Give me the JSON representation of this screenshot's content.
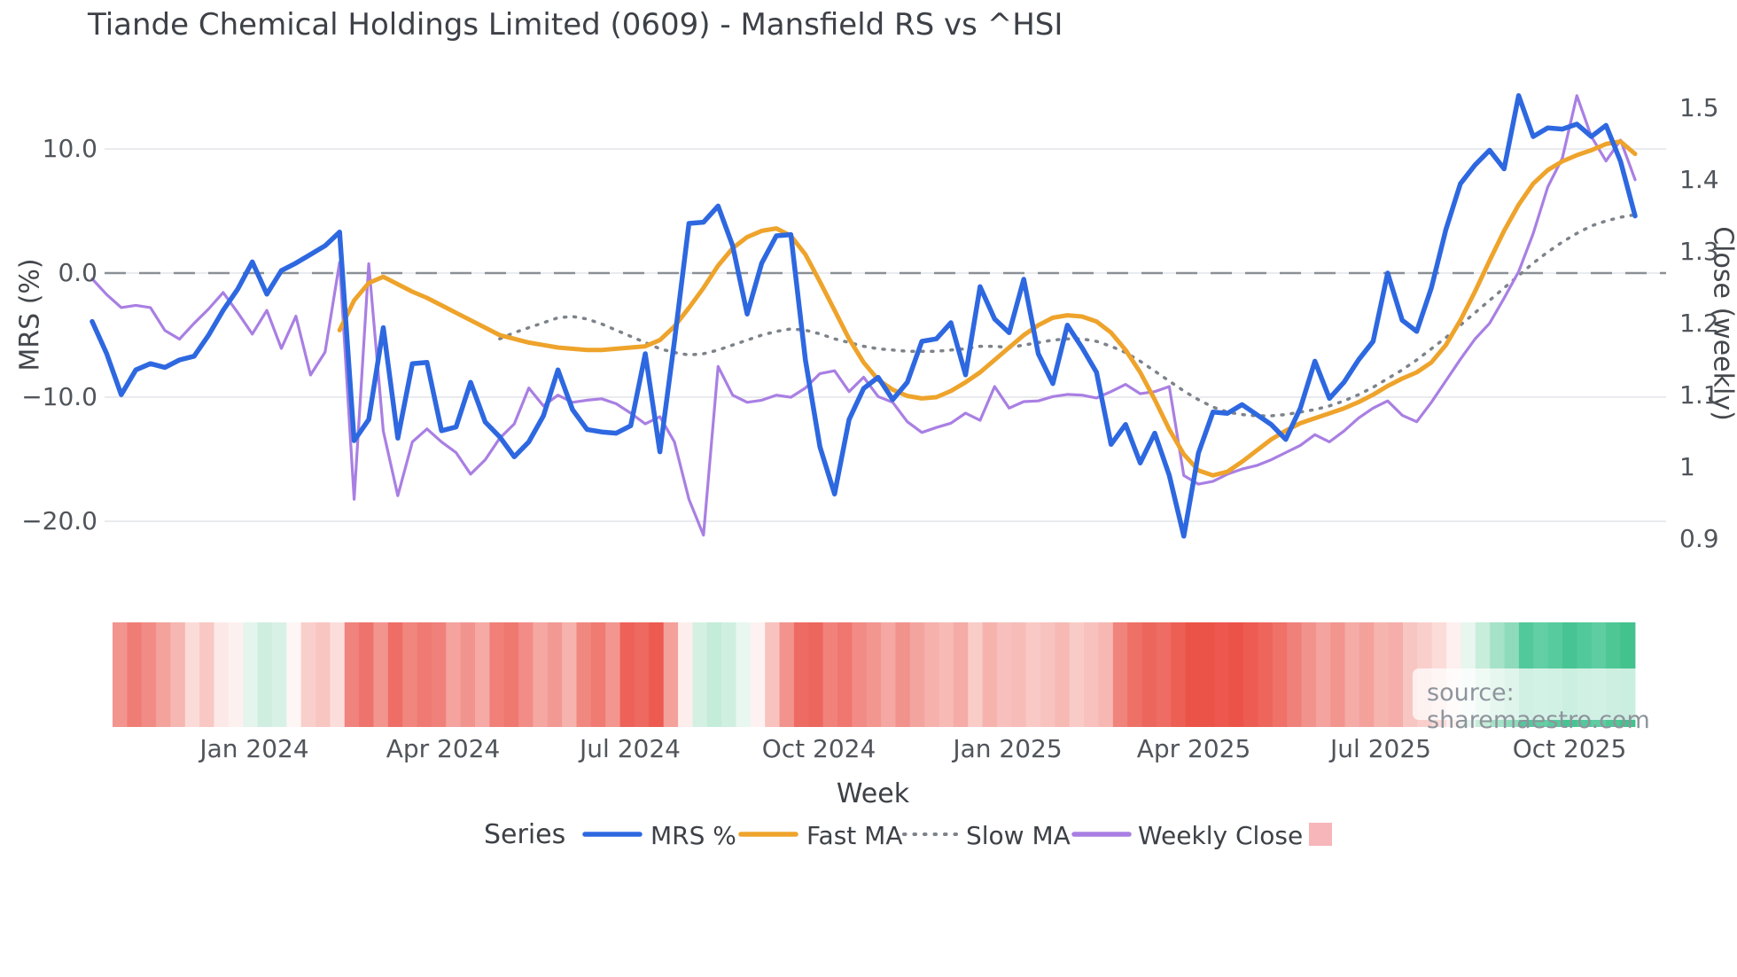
{
  "chart_data": {
    "type": "line",
    "title": "Tiande Chemical Holdings Limited (0609) - Mansfield RS vs ^HSI",
    "xlabel": "Week",
    "legend_title": "Series",
    "watermark": "source: sharemaestro.com",
    "background": "#ffffff",
    "grid_color": "#e9ebee",
    "zero_line": {
      "value": 0.0,
      "color": "#8a9096",
      "style": "dashed"
    },
    "x_axis": {
      "label": "Week",
      "tick_labels": [
        "Jan 2024",
        "Apr 2024",
        "Jul 2024",
        "Oct 2024",
        "Jan 2025",
        "Apr 2025",
        "Jul 2025",
        "Oct 2025"
      ],
      "tick_x": [
        287,
        500,
        711,
        924,
        1137,
        1347,
        1558,
        1771
      ]
    },
    "y_left": {
      "label": "MRS (%)",
      "tick_labels": [
        "10.0",
        "0.0",
        "−10.0",
        "−20.0"
      ],
      "tick_values": [
        10,
        0,
        -10,
        -20
      ],
      "range": [
        -23.5,
        16.5
      ]
    },
    "y_right": {
      "label": "Close (weekly)",
      "tick_labels": [
        "1.5",
        "1.4",
        "1.3",
        "1.2",
        "1.1",
        "1",
        "0.9"
      ],
      "tick_values": [
        1.5,
        1.4,
        1.3,
        1.2,
        1.1,
        1.0,
        0.9
      ],
      "zero_aligned_close": 1.27
    },
    "series": [
      {
        "name": "Slow MA",
        "axis": "left",
        "color": "#7d838a",
        "width": 3.5,
        "dashed": true,
        "start_index": 28,
        "values": [
          -5.3,
          -4.8,
          -4.4,
          -4.0,
          -3.6,
          -3.5,
          -3.7,
          -4.1,
          -4.6,
          -5.1,
          -5.6,
          -6.1,
          -6.4,
          -6.6,
          -6.5,
          -6.2,
          -5.8,
          -5.4,
          -5.0,
          -4.7,
          -4.5,
          -4.6,
          -4.9,
          -5.3,
          -5.6,
          -5.9,
          -6.1,
          -6.2,
          -6.3,
          -6.3,
          -6.3,
          -6.2,
          -6.1,
          -5.9,
          -5.9,
          -6.0,
          -5.8,
          -5.6,
          -5.4,
          -5.3,
          -5.3,
          -5.5,
          -5.9,
          -6.4,
          -7.1,
          -7.9,
          -8.7,
          -9.5,
          -10.2,
          -10.8,
          -11.2,
          -11.4,
          -11.5,
          -11.5,
          -11.4,
          -11.2,
          -11.0,
          -10.7,
          -10.3,
          -9.8,
          -9.2,
          -8.5,
          -7.8,
          -7.0,
          -6.1,
          -5.2,
          -4.2,
          -3.2,
          -2.2,
          -1.2,
          -0.2,
          0.8,
          1.7,
          2.5,
          3.2,
          3.8,
          4.2,
          4.5,
          4.7
        ]
      },
      {
        "name": "Weekly Close",
        "axis": "right",
        "color": "#a97fe3",
        "width": 3.2,
        "dashed": false,
        "start_index": 0,
        "values": [
          1.262,
          1.24,
          1.222,
          1.225,
          1.222,
          1.19,
          1.178,
          1.2,
          1.22,
          1.243,
          1.215,
          1.185,
          1.218,
          1.165,
          1.21,
          1.128,
          1.16,
          1.285,
          0.955,
          1.283,
          1.05,
          0.96,
          1.035,
          1.053,
          1.035,
          1.02,
          0.99,
          1.01,
          1.04,
          1.06,
          1.11,
          1.085,
          1.1,
          1.09,
          1.093,
          1.095,
          1.088,
          1.075,
          1.06,
          1.07,
          1.035,
          0.955,
          0.905,
          1.14,
          1.1,
          1.09,
          1.093,
          1.1,
          1.097,
          1.11,
          1.13,
          1.134,
          1.105,
          1.125,
          1.098,
          1.09,
          1.063,
          1.048,
          1.055,
          1.061,
          1.075,
          1.065,
          1.112,
          1.082,
          1.091,
          1.092,
          1.098,
          1.101,
          1.1,
          1.096,
          1.105,
          1.115,
          1.102,
          1.105,
          1.112,
          0.988,
          0.976,
          0.98,
          0.99,
          0.997,
          1.002,
          1.01,
          1.02,
          1.03,
          1.045,
          1.035,
          1.05,
          1.068,
          1.082,
          1.092,
          1.072,
          1.063,
          1.09,
          1.12,
          1.15,
          1.178,
          1.2,
          1.235,
          1.272,
          1.325,
          1.39,
          1.43,
          1.517,
          1.46,
          1.426,
          1.455,
          1.4
        ]
      },
      {
        "name": "Fast MA",
        "axis": "left",
        "color": "#eea32b",
        "width": 5.0,
        "dashed": false,
        "start_index": 17,
        "values": [
          -4.6,
          -2.2,
          -0.8,
          -0.3,
          -0.9,
          -1.5,
          -2.0,
          -2.6,
          -3.2,
          -3.8,
          -4.4,
          -5.0,
          -5.3,
          -5.6,
          -5.8,
          -6.0,
          -6.1,
          -6.2,
          -6.2,
          -6.1,
          -6.0,
          -5.9,
          -5.4,
          -4.3,
          -2.8,
          -1.2,
          0.6,
          2.0,
          2.9,
          3.4,
          3.6,
          3.0,
          1.5,
          -0.7,
          -3.0,
          -5.3,
          -7.2,
          -8.6,
          -9.4,
          -9.9,
          -10.1,
          -10.0,
          -9.5,
          -8.8,
          -8.0,
          -7.0,
          -6.0,
          -5.0,
          -4.2,
          -3.6,
          -3.4,
          -3.5,
          -3.9,
          -4.8,
          -6.2,
          -8.0,
          -10.2,
          -12.6,
          -14.6,
          -15.9,
          -16.3,
          -16.0,
          -15.2,
          -14.3,
          -13.4,
          -12.7,
          -12.1,
          -11.7,
          -11.3,
          -10.9,
          -10.4,
          -9.8,
          -9.1,
          -8.5,
          -8.0,
          -7.2,
          -5.8,
          -3.8,
          -1.5,
          1.0,
          3.4,
          5.5,
          7.2,
          8.3,
          9.0,
          9.5,
          9.9,
          10.4,
          10.6,
          9.6
        ]
      },
      {
        "name": "MRS %",
        "axis": "left",
        "color": "#2e68e0",
        "width": 5.5,
        "dashed": false,
        "start_index": 0,
        "values": [
          -3.9,
          -6.5,
          -9.8,
          -7.8,
          -7.3,
          -7.6,
          -7.0,
          -6.7,
          -5.0,
          -3.0,
          -1.3,
          0.9,
          -1.7,
          0.2,
          0.8,
          1.5,
          2.2,
          3.3,
          -13.5,
          -11.8,
          -4.4,
          -13.3,
          -7.3,
          -7.2,
          -12.7,
          -12.4,
          -8.8,
          -12.0,
          -13.2,
          -14.8,
          -13.6,
          -11.5,
          -7.8,
          -11.0,
          -12.6,
          -12.8,
          -12.9,
          -12.3,
          -6.5,
          -14.4,
          -5.5,
          4.0,
          4.1,
          5.4,
          2.2,
          -3.3,
          0.8,
          3.0,
          3.1,
          -7.0,
          -14.0,
          -17.8,
          -11.8,
          -9.3,
          -8.4,
          -10.2,
          -8.8,
          -5.5,
          -5.3,
          -4.0,
          -8.2,
          -1.1,
          -3.7,
          -4.8,
          -0.5,
          -6.5,
          -8.9,
          -4.2,
          -6.0,
          -8.0,
          -13.8,
          -12.2,
          -15.3,
          -12.9,
          -16.3,
          -21.2,
          -14.5,
          -11.2,
          -11.3,
          -10.6,
          -11.4,
          -12.2,
          -13.4,
          -10.9,
          -7.1,
          -10.1,
          -8.8,
          -7.0,
          -5.5,
          0.0,
          -3.8,
          -4.7,
          -1.2,
          3.5,
          7.2,
          8.7,
          9.9,
          8.4,
          14.3,
          11.0,
          11.7,
          11.6,
          12.0,
          11.0,
          11.9,
          9.0,
          4.6
        ]
      }
    ],
    "legend": [
      {
        "label": "MRS %",
        "color": "#2e68e0",
        "type": "line"
      },
      {
        "label": "Fast MA",
        "color": "#eea32b",
        "type": "line"
      },
      {
        "label": "Slow MA",
        "color": "#7d838a",
        "type": "dotted-line"
      },
      {
        "label": "Weekly Close",
        "color": "#a97fe3",
        "type": "line"
      },
      {
        "label": "",
        "color": "#f7b6ba",
        "type": "square"
      }
    ],
    "heatmap_weekly_colors": [
      "#f2958f",
      "#ef7d76",
      "#f18b85",
      "#f3a29c",
      "#f6b6b1",
      "#fbdbd8",
      "#f9c8c4",
      "#fce9e7",
      "#fdf1f0",
      "#e3f5ec",
      "#cfeee0",
      "#d8f1e6",
      "#fdf6f5",
      "#f9cfcb",
      "#f8c5c1",
      "#fbdedb",
      "#f0837d",
      "#ee736c",
      "#f2958f",
      "#ee6e67",
      "#f1867f",
      "#ef7a73",
      "#f0807a",
      "#f4a39e",
      "#f2948e",
      "#f5aaa5",
      "#f08078",
      "#ef7870",
      "#f28c86",
      "#f5a7a2",
      "#f39993",
      "#f6b2ad",
      "#f18880",
      "#ef7b73",
      "#f3968f",
      "#ed6158",
      "#ee6960",
      "#ec5a50",
      "#f4a09b",
      "#fdeeec",
      "#d4f0e3",
      "#c3ecd9",
      "#cfefe0",
      "#e8f7f0",
      "#fdf2f1",
      "#f8c2be",
      "#f2938d",
      "#ee6b63",
      "#ed665e",
      "#f0827b",
      "#ef7770",
      "#f28b85",
      "#f39690",
      "#f5a8a3",
      "#f2928c",
      "#f4a49f",
      "#f6b1ac",
      "#f7bab5",
      "#f5aba6",
      "#f9ccc8",
      "#f6b3ae",
      "#f8c0bc",
      "#f7bcb7",
      "#f9c9c5",
      "#f8c3bf",
      "#f7b9b4",
      "#f9cbc7",
      "#f8c1bd",
      "#f7b8b3",
      "#f0837c",
      "#ee7168",
      "#ed665d",
      "#ee6c63",
      "#ed5f55",
      "#ec5348",
      "#ec5348",
      "#ed574d",
      "#ec5348",
      "#ed5c52",
      "#ee655c",
      "#ef7168",
      "#f0817a",
      "#f2928c",
      "#f4a39e",
      "#f2958f",
      "#f5aba6",
      "#f4a19c",
      "#f6b4af",
      "#f5aea9",
      "#f8c6c2",
      "#f9cfcc",
      "#fbdcd9",
      "#fdf0ef",
      "#e7f6ef",
      "#c8edda",
      "#a5e2c8",
      "#8edbbb",
      "#52c99b",
      "#63cfa4",
      "#58cb9e",
      "#47c493",
      "#52c99b",
      "#5ecda1",
      "#4ec795",
      "#43c28e"
    ]
  }
}
